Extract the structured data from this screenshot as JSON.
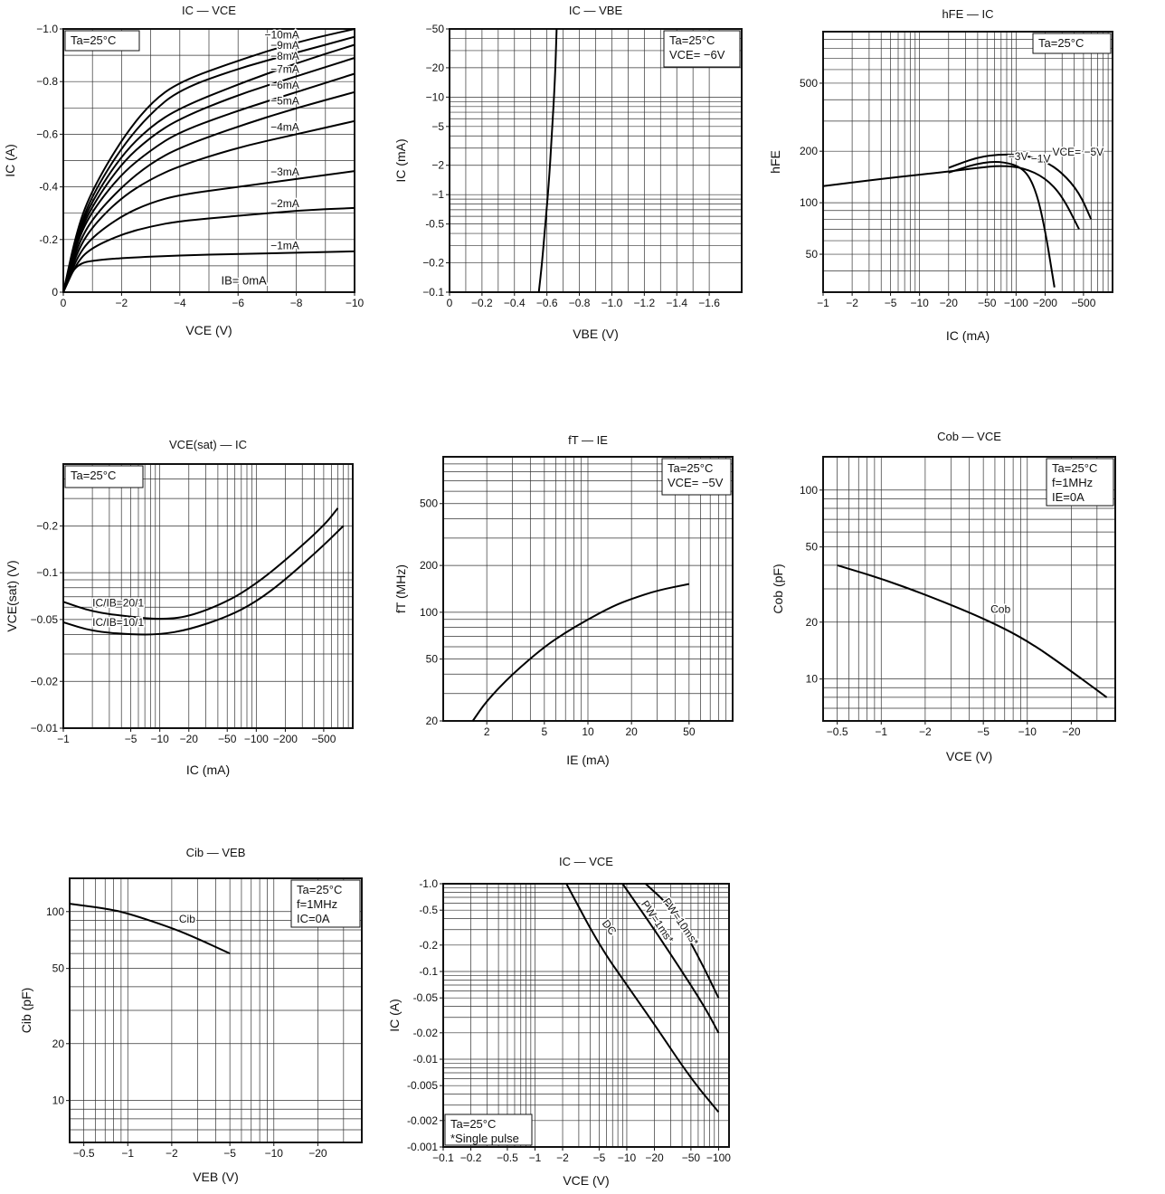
{
  "colors": {
    "frame": "#111111",
    "grid": "#333333",
    "curve": "#000000",
    "background": "#ffffff"
  },
  "chart_data": [
    {
      "id": "ic-vce",
      "type": "line",
      "title": "IC — VCE",
      "xlabel": "VCE (V)",
      "ylabel": "IC (A)",
      "xscale": "linear",
      "yscale": "linear",
      "xlim": [
        0,
        -10
      ],
      "ylim": [
        0,
        -1.0
      ],
      "x_ticks": [
        0,
        -2,
        -4,
        -6,
        -8,
        -10
      ],
      "x_tick_labels": [
        "0",
        "−2",
        "−4",
        "−6",
        "−8",
        "−10"
      ],
      "y_ticks": [
        0,
        -0.2,
        -0.4,
        -0.6,
        -0.8,
        -1.0
      ],
      "y_tick_labels": [
        "0",
        "-0.2",
        "-0.4",
        "−0.6",
        "−0.8",
        "−1.0"
      ],
      "grid": true,
      "condition_box": [
        "Ta=25°C"
      ],
      "series": [
        {
          "name": "−10mA",
          "x": [
            0,
            -0.5,
            -1,
            -2,
            -3,
            -4,
            -6,
            -8,
            -10
          ],
          "y": [
            0,
            -0.25,
            -0.39,
            -0.58,
            -0.72,
            -0.8,
            -0.88,
            -0.95,
            -1.0
          ]
        },
        {
          "name": "−9mA",
          "x": [
            0,
            -0.5,
            -1,
            -2,
            -3,
            -4,
            -6,
            -8,
            -10
          ],
          "y": [
            0,
            -0.23,
            -0.37,
            -0.55,
            -0.68,
            -0.77,
            -0.85,
            -0.91,
            -0.97
          ]
        },
        {
          "name": "−8mA",
          "x": [
            0,
            -0.5,
            -1,
            -2,
            -3,
            -4,
            -6,
            -8,
            -10
          ],
          "y": [
            0,
            -0.22,
            -0.35,
            -0.52,
            -0.63,
            -0.7,
            -0.79,
            -0.87,
            -0.94
          ]
        },
        {
          "name": "−7mA",
          "x": [
            0,
            -0.5,
            -1,
            -2,
            -3,
            -4,
            -6,
            -8,
            -10
          ],
          "y": [
            0,
            -0.21,
            -0.33,
            -0.49,
            -0.59,
            -0.66,
            -0.75,
            -0.82,
            -0.89
          ]
        },
        {
          "name": "−6mA",
          "x": [
            0,
            -0.5,
            -1,
            -2,
            -3,
            -4,
            -6,
            -8,
            -10
          ],
          "y": [
            0,
            -0.2,
            -0.31,
            -0.45,
            -0.54,
            -0.61,
            -0.69,
            -0.76,
            -0.83
          ]
        },
        {
          "name": "−5mA",
          "x": [
            0,
            -0.5,
            -1,
            -2,
            -3,
            -4,
            -6,
            -8,
            -10
          ],
          "y": [
            0,
            -0.18,
            -0.28,
            -0.4,
            -0.49,
            -0.55,
            -0.63,
            -0.7,
            -0.76
          ]
        },
        {
          "name": "−4mA",
          "x": [
            0,
            -0.5,
            -1,
            -2,
            -3,
            -4,
            -6,
            -8,
            -10
          ],
          "y": [
            0,
            -0.16,
            -0.25,
            -0.36,
            -0.43,
            -0.48,
            -0.55,
            -0.6,
            -0.65
          ]
        },
        {
          "name": "−3mA",
          "x": [
            0,
            -0.5,
            -1,
            -2,
            -3,
            -4,
            -6,
            -8,
            -10
          ],
          "y": [
            0,
            -0.14,
            -0.21,
            -0.29,
            -0.34,
            -0.37,
            -0.4,
            -0.43,
            -0.46
          ]
        },
        {
          "name": "−2mA",
          "x": [
            0,
            -0.5,
            -1,
            -2,
            -3,
            -4,
            -6,
            -8,
            -10
          ],
          "y": [
            0,
            -0.12,
            -0.17,
            -0.22,
            -0.25,
            -0.27,
            -0.29,
            -0.31,
            -0.32
          ]
        },
        {
          "name": "−1mA",
          "x": [
            0,
            -0.3,
            -0.6,
            -1,
            -2,
            -4,
            -6,
            -8,
            -10
          ],
          "y": [
            0,
            -0.08,
            -0.11,
            -0.12,
            -0.13,
            -0.14,
            -0.145,
            -0.15,
            -0.155
          ]
        }
      ],
      "annotations": [
        "IB= 0mA"
      ]
    },
    {
      "id": "ic-vbe",
      "type": "line",
      "title": "IC — VBE",
      "xlabel": "VBE (V)",
      "ylabel": "IC (mA)",
      "xscale": "linear",
      "yscale": "log",
      "xlim": [
        0,
        -1.8
      ],
      "ylim": [
        -0.1,
        -50
      ],
      "x_ticks": [
        0,
        -0.2,
        -0.4,
        -0.6,
        -0.8,
        -1.0,
        -1.2,
        -1.4,
        -1.6
      ],
      "x_tick_labels": [
        "0",
        "−0.2",
        "−0.4",
        "−0.6",
        "−0.8",
        "−1.0",
        "−1.2",
        "−1.4",
        "−1.6"
      ],
      "y_ticks": [
        -0.1,
        -0.2,
        -0.5,
        -1,
        -2,
        -5,
        -10,
        -20,
        -50
      ],
      "y_tick_labels": [
        "−0.1",
        "−0.2",
        "-0.5",
        "−1",
        "−2",
        "−5",
        "−10",
        "−20",
        "−50"
      ],
      "grid": true,
      "condition_box": [
        "Ta=25°C",
        "VCE= −6V"
      ],
      "series": [
        {
          "name": "",
          "x": [
            -0.55,
            -0.57,
            -0.59,
            -0.61,
            -0.63,
            -0.65,
            -0.66
          ],
          "y": [
            -0.1,
            -0.2,
            -0.5,
            -1.2,
            -4,
            -15,
            -50
          ]
        }
      ]
    },
    {
      "id": "hfe-ic",
      "type": "line",
      "title": "hFE — IC",
      "xlabel": "IC (mA)",
      "ylabel": "hFE",
      "xscale": "log",
      "yscale": "log",
      "xlim": [
        -1,
        -1000
      ],
      "ylim": [
        30,
        1000
      ],
      "x_ticks": [
        -1,
        -2,
        -5,
        -10,
        -20,
        -50,
        -100,
        -200,
        -500
      ],
      "x_tick_labels": [
        "−1",
        "−2",
        "−5",
        "−10",
        "−20",
        "−50",
        "−100",
        "−200",
        "−500"
      ],
      "y_ticks": [
        50,
        100,
        200,
        500
      ],
      "y_tick_labels": [
        "50",
        "100",
        "200",
        "500"
      ],
      "grid": true,
      "condition_box": [
        "Ta=25°C"
      ],
      "series": [
        {
          "name": "VCE= −5V",
          "x": [
            -20,
            -40,
            -70,
            -120,
            -200,
            -300,
            -450,
            -600
          ],
          "y": [
            160,
            185,
            192,
            190,
            175,
            150,
            115,
            80
          ]
        },
        {
          "name": "−3V",
          "x": [
            -1,
            -5,
            -20,
            -40,
            -70,
            -120,
            -200,
            -300,
            -450
          ],
          "y": [
            125,
            140,
            152,
            160,
            165,
            160,
            140,
            110,
            70
          ]
        },
        {
          "name": "−1V",
          "x": [
            -20,
            -40,
            -70,
            -120,
            -160,
            -200,
            -250
          ],
          "y": [
            150,
            170,
            175,
            160,
            120,
            70,
            32
          ]
        }
      ]
    },
    {
      "id": "vcesat-ic",
      "type": "line",
      "title": "VCE(sat) — IC",
      "xlabel": "IC (mA)",
      "ylabel": "VCE(sat) (V)",
      "xscale": "log",
      "yscale": "log",
      "xlim": [
        -1,
        -1000
      ],
      "ylim": [
        -0.01,
        -0.5
      ],
      "x_ticks": [
        -1,
        -5,
        -10,
        -20,
        -50,
        -100,
        -200,
        -500
      ],
      "x_tick_labels": [
        "−1",
        "−5",
        "−10",
        "−20",
        "−50",
        "−100",
        "−200",
        "−500"
      ],
      "y_ticks": [
        -0.01,
        -0.02,
        -0.05,
        -0.1,
        -0.2
      ],
      "y_tick_labels": [
        "−0.01",
        "−0.02",
        "−0.05",
        "−0.1",
        "−0.2"
      ],
      "grid": true,
      "condition_box": [
        "Ta=25°C"
      ],
      "series": [
        {
          "name": "IC/IB=20/1",
          "x": [
            -1,
            -2,
            -5,
            -10,
            -20,
            -50,
            -100,
            -200,
            -500,
            -700
          ],
          "y": [
            -0.065,
            -0.056,
            -0.052,
            -0.05,
            -0.052,
            -0.065,
            -0.085,
            -0.12,
            -0.2,
            -0.26
          ]
        },
        {
          "name": "IC/IB=10/1",
          "x": [
            -1,
            -2,
            -5,
            -10,
            -20,
            -50,
            -100,
            -200,
            -500,
            -800
          ],
          "y": [
            -0.048,
            -0.042,
            -0.04,
            -0.04,
            -0.043,
            -0.052,
            -0.065,
            -0.09,
            -0.15,
            -0.2
          ]
        }
      ]
    },
    {
      "id": "ft-ie",
      "type": "line",
      "title": "fT — IE",
      "xlabel": "IE (mA)",
      "ylabel": "fT (MHz)",
      "xscale": "log",
      "yscale": "log",
      "xlim": [
        1,
        100
      ],
      "ylim": [
        20,
        1000
      ],
      "x_ticks": [
        2,
        5,
        10,
        20,
        50
      ],
      "x_tick_labels": [
        "2",
        "5",
        "10",
        "20",
        "50"
      ],
      "y_ticks": [
        20,
        50,
        100,
        200,
        500
      ],
      "y_tick_labels": [
        "20",
        "50",
        "100",
        "200",
        "500"
      ],
      "grid": true,
      "condition_box": [
        "Ta=25°C",
        "VCE= −5V"
      ],
      "series": [
        {
          "name": "",
          "x": [
            1.6,
            2,
            3,
            5,
            7,
            10,
            15,
            20,
            30,
            50
          ],
          "y": [
            20,
            27,
            40,
            60,
            74,
            90,
            110,
            122,
            138,
            152
          ]
        }
      ]
    },
    {
      "id": "cob-vce",
      "type": "line",
      "title": "Cob — VCE",
      "xlabel": "VCE (V)",
      "ylabel": "Cob (pF)",
      "xscale": "log",
      "yscale": "log",
      "xlim": [
        -0.4,
        -40
      ],
      "ylim": [
        6,
        150
      ],
      "x_ticks": [
        -0.5,
        -1,
        -2,
        -5,
        -10,
        -20
      ],
      "x_tick_labels": [
        "−0.5",
        "−1",
        "−2",
        "−5",
        "−10",
        "−20"
      ],
      "y_ticks": [
        10,
        20,
        50,
        100
      ],
      "y_tick_labels": [
        "10",
        "20",
        "50",
        "100"
      ],
      "grid": true,
      "condition_box": [
        "Ta=25°C",
        "f=1MHz",
        "IE=0A"
      ],
      "series": [
        {
          "name": "Cob",
          "x": [
            -0.5,
            -1,
            -2,
            -5,
            -10,
            -20,
            -35
          ],
          "y": [
            40,
            34,
            28,
            21,
            16,
            11,
            8
          ]
        }
      ]
    },
    {
      "id": "cib-veb",
      "type": "line",
      "title": "Cib — VEB",
      "xlabel": "VEB (V)",
      "ylabel": "Cib (pF)",
      "xscale": "log",
      "yscale": "log",
      "xlim": [
        -0.4,
        -40
      ],
      "ylim": [
        6,
        150
      ],
      "x_ticks": [
        -0.5,
        -1,
        -2,
        -5,
        -10,
        -20
      ],
      "x_tick_labels": [
        "−0.5",
        "−1",
        "−2",
        "−5",
        "−10",
        "−20"
      ],
      "y_ticks": [
        10,
        20,
        50,
        100
      ],
      "y_tick_labels": [
        "10",
        "20",
        "50",
        "100"
      ],
      "grid": true,
      "condition_box": [
        "Ta=25°C",
        "f=1MHz",
        "IC=0A"
      ],
      "series": [
        {
          "name": "Cib",
          "x": [
            -0.4,
            -0.7,
            -1,
            -2,
            -3,
            -5
          ],
          "y": [
            110,
            104,
            98,
            82,
            72,
            60
          ]
        }
      ]
    },
    {
      "id": "soa",
      "type": "line",
      "title": "IC — VCE",
      "xlabel": "VCE (V)",
      "ylabel": "IC (A)",
      "xscale": "log",
      "yscale": "log",
      "xlim": [
        -0.1,
        -130
      ],
      "ylim": [
        -0.001,
        -1.0
      ],
      "x_ticks": [
        -0.1,
        -0.2,
        -0.5,
        -1,
        -2,
        -5,
        -10,
        -20,
        -50,
        -100
      ],
      "x_tick_labels": [
        "−0.1",
        "−0.2",
        "−0.5",
        "−1",
        "−2",
        "−5",
        "−10",
        "−20",
        "−50",
        "−100"
      ],
      "y_ticks": [
        -0.001,
        -0.002,
        -0.005,
        -0.01,
        -0.02,
        -0.05,
        -0.1,
        -0.2,
        -0.5,
        -1.0
      ],
      "y_tick_labels": [
        "-0.001",
        "-0.002",
        "-0.005",
        "-0.01",
        "-0.02",
        "-0.05",
        "-0.1",
        "-0.2",
        "-0.5",
        "-1.0"
      ],
      "grid": true,
      "condition_box": [
        "Ta=25°C",
        "*Single pulse"
      ],
      "series": [
        {
          "name": "DC",
          "x": [
            -2.2,
            -5,
            -10,
            -20,
            -50,
            -100
          ],
          "y": [
            -1.0,
            -0.2,
            -0.07,
            -0.025,
            -0.006,
            -0.0025
          ]
        },
        {
          "name": "PW=10ms*",
          "x": [
            -9,
            -20,
            -40,
            -70,
            -100
          ],
          "y": [
            -1.0,
            -0.3,
            -0.1,
            -0.04,
            -0.02
          ]
        },
        {
          "name": "PW=1ms*",
          "x": [
            -16,
            -30,
            -60,
            -100
          ],
          "y": [
            -1.0,
            -0.55,
            -0.15,
            -0.05
          ]
        }
      ],
      "annotations": [
        "DC",
        "PW=10ms*",
        "PW=1ms*"
      ]
    }
  ]
}
